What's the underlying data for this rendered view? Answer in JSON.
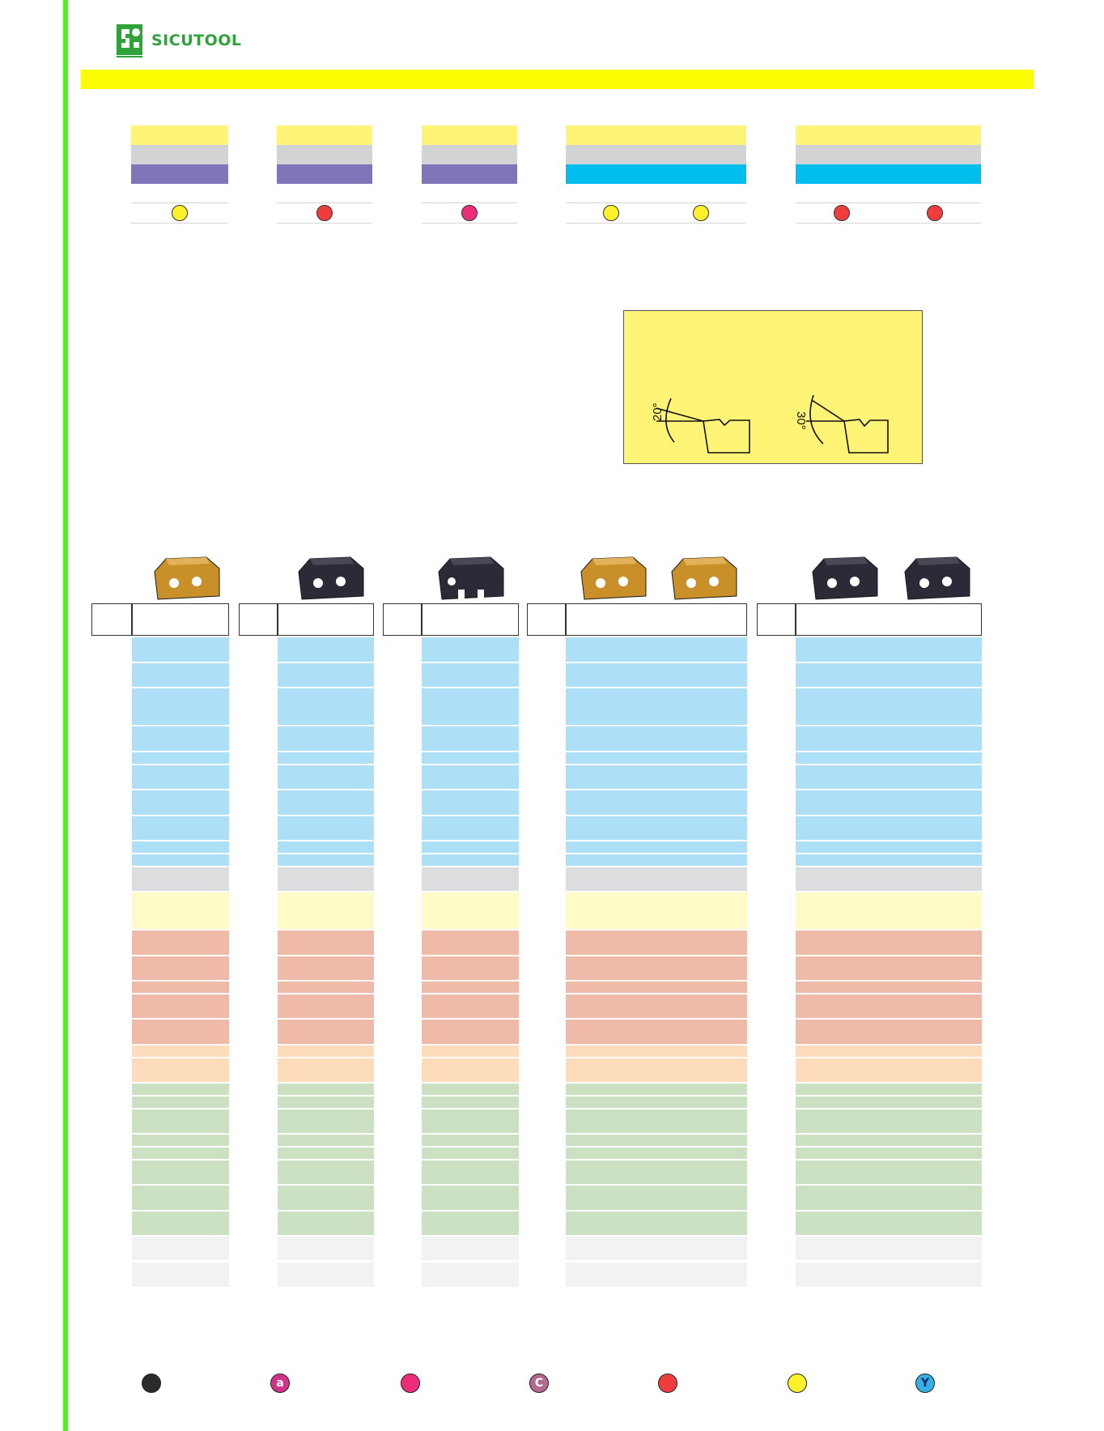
{
  "brand": {
    "name": "SICUTOOL",
    "color": "#2fa33a"
  },
  "accent_colors": {
    "frame_green": "#4cf21f",
    "banner_yellow": "#fbfb02"
  },
  "spec_grades": [
    {
      "bands": [
        "yellow",
        "grey",
        "purple"
      ],
      "dots": [
        "#fff22b"
      ]
    },
    {
      "bands": [
        "yellow",
        "grey",
        "purple"
      ],
      "dots": [
        "#ef3c3c"
      ]
    },
    {
      "bands": [
        "yellow",
        "grey",
        "purple"
      ],
      "dots": [
        "#ee2d7a"
      ]
    },
    {
      "bands": [
        "yellow",
        "grey",
        "cyan"
      ],
      "dots": [
        "#fff22b",
        "#fff22b"
      ]
    },
    {
      "bands": [
        "yellow",
        "grey",
        "cyan"
      ],
      "dots": [
        "#ef3c3c",
        "#ef3c3c"
      ]
    }
  ],
  "angle_diagram": {
    "left_angle": "20°",
    "right_angle": "30°"
  },
  "inserts": [
    {
      "icon": "gold-insert-icon",
      "color": "#c9902a"
    },
    {
      "icon": "black-insert-icon",
      "color": "#2c2a36"
    },
    {
      "icon": "black-notched-insert-icon",
      "color": "#2c2a36"
    },
    {
      "icon": "gold-insert-icon",
      "color": "#c9902a"
    },
    {
      "icon": "gold-insert-icon",
      "color": "#c9902a"
    },
    {
      "icon": "black-insert-icon",
      "color": "#2c2a36"
    },
    {
      "icon": "black-insert-icon",
      "color": "#2c2a36"
    }
  ],
  "material_groups": [
    "blue",
    "blue",
    "blue",
    "blue",
    "blue",
    "blue",
    "blue",
    "blue",
    "blue",
    "blue",
    "grey",
    "cream",
    "salmon",
    "salmon",
    "salmon",
    "salmon",
    "salmon",
    "peach",
    "peach",
    "green",
    "green",
    "green",
    "green",
    "green",
    "green",
    "green",
    "green",
    "light",
    "light"
  ],
  "legend": [
    {
      "icon": "black-dot-icon",
      "letter": "",
      "color": "#2b2b2b"
    },
    {
      "icon": "magenta-a-icon",
      "letter": "a",
      "color": "#d2338a"
    },
    {
      "icon": "pink-dot-icon",
      "letter": "",
      "color": "#ee2d7a"
    },
    {
      "icon": "mauve-c-icon",
      "letter": "C",
      "color": "#b46a8e"
    },
    {
      "icon": "red-dot-icon",
      "letter": "",
      "color": "#ef3c3c"
    },
    {
      "icon": "yellow-dot-icon",
      "letter": "",
      "color": "#fff22b"
    },
    {
      "icon": "blue-y-icon",
      "letter": "Y",
      "color": "#36aee3"
    }
  ]
}
